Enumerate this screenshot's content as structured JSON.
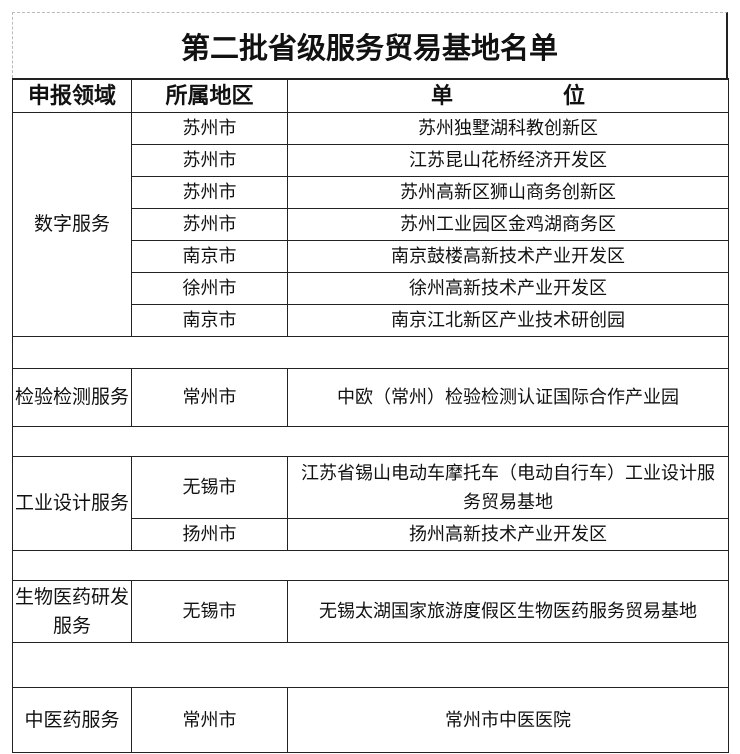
{
  "title": "第二批省级服务贸易基地名单",
  "headers": {
    "domain": "申报领域",
    "region": "所属地区",
    "unit": "单位"
  },
  "groups": [
    {
      "domain": "数字服务",
      "rows": [
        {
          "region": "苏州市",
          "unit": "苏州独墅湖科教创新区"
        },
        {
          "region": "苏州市",
          "unit": "江苏昆山花桥经济开发区"
        },
        {
          "region": "苏州市",
          "unit": "苏州高新区狮山商务创新区"
        },
        {
          "region": "苏州市",
          "unit": "苏州工业园区金鸡湖商务区"
        },
        {
          "region": "南京市",
          "unit": "南京鼓楼高新技术产业开发区"
        },
        {
          "region": "徐州市",
          "unit": "徐州高新技术产业开发区"
        },
        {
          "region": "南京市",
          "unit": "南京江北新区产业技术研创园"
        }
      ]
    },
    {
      "domain": "检验检测服务",
      "rows": [
        {
          "region": "常州市",
          "unit": "中欧（常州）检验检测认证国际合作产业园"
        }
      ]
    },
    {
      "domain": "工业设计服务",
      "rows": [
        {
          "region": "无锡市",
          "unit": "江苏省锡山电动车摩托车（电动自行车）工业设计服务贸易基地"
        },
        {
          "region": "扬州市",
          "unit": "扬州高新技术产业开发区"
        }
      ]
    },
    {
      "domain": "生物医药研发服务",
      "rows": [
        {
          "region": "无锡市",
          "unit": "无锡太湖国家旅游度假区生物医药服务贸易基地"
        }
      ]
    },
    {
      "domain": "中医药服务",
      "rows": [
        {
          "region": "常州市",
          "unit": "常州市中医医院"
        }
      ]
    }
  ]
}
